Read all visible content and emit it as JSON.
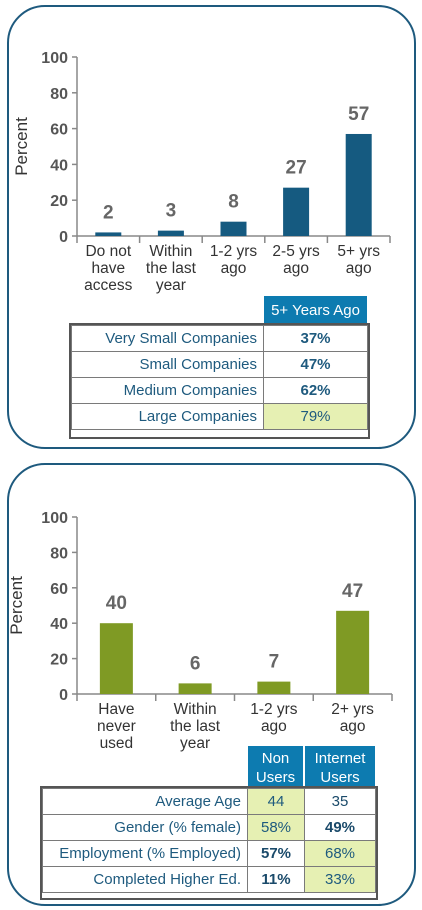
{
  "colors": {
    "panel_border": "#1e5a7e",
    "bar1": "#155a80",
    "bar2": "#7f9a24",
    "header": "#0d7bb0",
    "highlight": "#e6f0b3"
  },
  "chart_data": [
    {
      "type": "bar",
      "ylabel": "Percent",
      "ylim": [
        0,
        100
      ],
      "yticks": [
        "0",
        "20",
        "40",
        "60",
        "80",
        "100"
      ],
      "categories": [
        [
          "Do not",
          "have",
          "access"
        ],
        [
          "Within",
          "the last",
          "year"
        ],
        [
          "1-2 yrs",
          "ago"
        ],
        [
          "2-5 yrs",
          "ago"
        ],
        [
          "5+ yrs",
          "ago"
        ]
      ],
      "values": [
        2,
        3,
        8,
        27,
        57
      ],
      "labels": [
        "2",
        "3",
        "8",
        "27",
        "57"
      ]
    },
    {
      "type": "bar",
      "ylabel": "Percent",
      "ylim": [
        0,
        100
      ],
      "yticks": [
        "0",
        "20",
        "40",
        "60",
        "80",
        "100"
      ],
      "categories": [
        [
          "Have",
          "never",
          "used"
        ],
        [
          "Within",
          "the last",
          "year"
        ],
        [
          "1-2 yrs",
          "ago"
        ],
        [
          "2+ yrs",
          "ago"
        ]
      ],
      "values": [
        40,
        6,
        7,
        47
      ],
      "labels": [
        "40",
        "6",
        "7",
        "47"
      ]
    }
  ],
  "table1": {
    "header": "5+ Years Ago",
    "rows": [
      {
        "label": "Very Small Companies",
        "value": "37%"
      },
      {
        "label": "Small Companies",
        "value": "47%"
      },
      {
        "label": "Medium Companies",
        "value": "62%"
      },
      {
        "label": "Large Companies",
        "value": "79%"
      }
    ]
  },
  "table2": {
    "header_non": "Non Users",
    "header_internet": "Internet Users",
    "rows": [
      {
        "label": "Average Age",
        "non": "44",
        "internet": "35"
      },
      {
        "label": "Gender (% female)",
        "non": "58%",
        "internet": "49%"
      },
      {
        "label": "Employment (% Employed)",
        "non": "57%",
        "internet": "68%"
      },
      {
        "label": "Completed Higher Ed.",
        "non": "11%",
        "internet": "33%"
      }
    ]
  }
}
